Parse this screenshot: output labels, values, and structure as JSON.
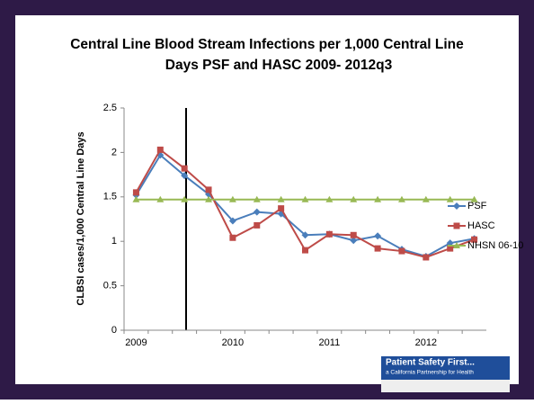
{
  "chart_data": {
    "type": "line",
    "title": [
      "Central Line Blood Stream Infections per 1,000 Central Line",
      "Days PSF and HASC 2009- 2012q3"
    ],
    "y_label": "CLBSI cases/1,000 Central Line Days",
    "categories": [
      "2009",
      null,
      null,
      null,
      "2010",
      null,
      null,
      null,
      "2011",
      null,
      null,
      null,
      "2012",
      null,
      null
    ],
    "series": [
      {
        "name": "PSF",
        "color": "#4a7ebb",
        "marker": "diamond",
        "values": [
          1.52,
          1.97,
          1.74,
          1.53,
          1.23,
          1.33,
          1.31,
          1.07,
          1.08,
          1.01,
          1.06,
          0.91,
          0.83,
          0.98,
          1.03
        ]
      },
      {
        "name": "HASC",
        "color": "#be4b48",
        "marker": "square",
        "values": [
          1.55,
          2.03,
          1.82,
          1.58,
          1.04,
          1.18,
          1.37,
          0.9,
          1.08,
          1.07,
          0.92,
          0.89,
          0.82,
          0.92,
          1.02
        ]
      },
      {
        "name": "NHSN 06-10",
        "color": "#98b954",
        "marker": "triangle",
        "values": [
          1.47,
          1.47,
          1.47,
          1.47,
          1.47,
          1.47,
          1.47,
          1.47,
          1.47,
          1.47,
          1.47,
          1.47,
          1.47,
          1.47,
          1.47
        ]
      }
    ],
    "ylim": [
      0,
      2.5
    ],
    "yticks": [
      0,
      0.5,
      1,
      1.5,
      2,
      2.5
    ],
    "grid": false,
    "legend": "right"
  },
  "logo": {
    "title": "Patient Safety First...",
    "subtitle": "a California Partnership for Health"
  }
}
